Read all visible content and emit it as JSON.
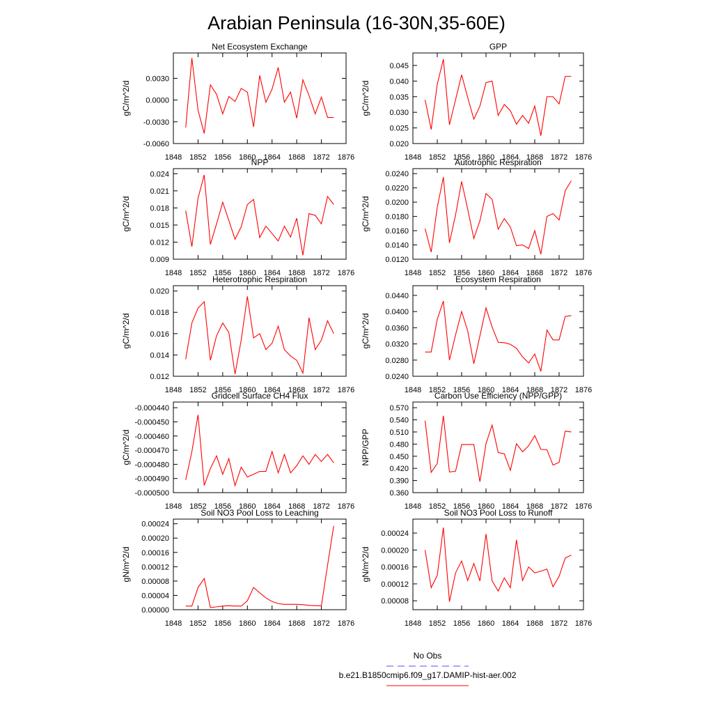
{
  "title": "Arabian Peninsula (16-30N,35-60E)",
  "legend": [
    {
      "name": "No Obs",
      "color": "#4d4dff",
      "dash": true
    },
    {
      "name": "b.e21.B1850cmip6.f09_g17.DAMIP-hist-aer.002",
      "color": "#ff0000",
      "dash": false
    }
  ],
  "chart_data": [
    {
      "type": "line",
      "title": "Net Ecosystem Exchange",
      "ylabel": "gC/m^2/d",
      "color": "#ff0000",
      "x": [
        1850,
        1851,
        1852,
        1853,
        1854,
        1855,
        1856,
        1857,
        1858,
        1859,
        1860,
        1861,
        1862,
        1863,
        1864,
        1865,
        1866,
        1867,
        1868,
        1869,
        1870,
        1871,
        1872,
        1873,
        1874
      ],
      "values": [
        -0.0038,
        0.0058,
        -0.0014,
        -0.0046,
        0.0021,
        0.0008,
        -0.0019,
        0.0005,
        -0.0002,
        0.0016,
        0.0011,
        -0.0037,
        0.0034,
        -0.0003,
        0.0015,
        0.0045,
        -0.0003,
        0.0011,
        -0.0025,
        0.0028,
        0.0006,
        -0.0019,
        0.0004,
        -0.0024,
        -0.0024
      ],
      "xlim": [
        1848,
        1876
      ],
      "xticks": [
        1848,
        1852,
        1856,
        1860,
        1864,
        1868,
        1872,
        1876
      ],
      "ylim": [
        -0.006,
        0.0065
      ],
      "yticks": [
        {
          "value": -0.006,
          "label": "-0.0060"
        },
        {
          "value": -0.003,
          "label": "-0.0030"
        },
        {
          "value": 0,
          "label": "0.0000"
        },
        {
          "value": 0.003,
          "label": "0.0030"
        }
      ]
    },
    {
      "type": "line",
      "title": "GPP",
      "ylabel": "gC/m^2/d",
      "color": "#ff0000",
      "x": [
        1850,
        1851,
        1852,
        1853,
        1854,
        1855,
        1856,
        1857,
        1858,
        1859,
        1860,
        1861,
        1862,
        1863,
        1864,
        1865,
        1866,
        1867,
        1868,
        1869,
        1870,
        1871,
        1872,
        1873,
        1874
      ],
      "values": [
        0.034,
        0.0245,
        0.039,
        0.047,
        0.026,
        0.034,
        0.042,
        0.0347,
        0.0278,
        0.032,
        0.0395,
        0.04,
        0.029,
        0.0325,
        0.0305,
        0.0262,
        0.029,
        0.0265,
        0.032,
        0.0225,
        0.035,
        0.035,
        0.0327,
        0.0415,
        0.0415
      ],
      "xlim": [
        1848,
        1876
      ],
      "xticks": [
        1848,
        1852,
        1856,
        1860,
        1864,
        1868,
        1872,
        1876
      ],
      "ylim": [
        0.02,
        0.049
      ],
      "yticks": [
        {
          "value": 0.02,
          "label": "0.020"
        },
        0.025,
        {
          "value": 0.03,
          "label": "0.030"
        },
        0.035,
        {
          "value": 0.04,
          "label": "0.040"
        },
        0.045
      ]
    },
    {
      "type": "line",
      "title": "NPP",
      "ylabel": "gC/m^2/d",
      "color": "#ff0000",
      "x": [
        1850,
        1851,
        1852,
        1853,
        1854,
        1855,
        1856,
        1857,
        1858,
        1859,
        1860,
        1861,
        1862,
        1863,
        1864,
        1865,
        1866,
        1867,
        1868,
        1869,
        1870,
        1871,
        1872,
        1873,
        1874
      ],
      "values": [
        0.0175,
        0.0112,
        0.0197,
        0.0238,
        0.0116,
        0.0152,
        0.019,
        0.0158,
        0.0125,
        0.0147,
        0.0186,
        0.0195,
        0.0128,
        0.0148,
        0.0135,
        0.0122,
        0.0148,
        0.0129,
        0.0162,
        0.0097,
        0.017,
        0.0167,
        0.0152,
        0.02,
        0.0186
      ],
      "xlim": [
        1848,
        1876
      ],
      "xticks": [
        1848,
        1852,
        1856,
        1860,
        1864,
        1868,
        1872,
        1876
      ],
      "ylim": [
        0.009,
        0.0249
      ],
      "yticks": [
        0.009,
        0.012,
        0.015,
        0.018,
        0.021,
        0.024
      ]
    },
    {
      "type": "line",
      "title": "Autotrophic Respiration",
      "ylabel": "gC/m^2/d",
      "color": "#ff0000",
      "x": [
        1850,
        1851,
        1852,
        1853,
        1854,
        1855,
        1856,
        1857,
        1858,
        1859,
        1860,
        1861,
        1862,
        1863,
        1864,
        1865,
        1866,
        1867,
        1868,
        1869,
        1870,
        1871,
        1872,
        1873,
        1874
      ],
      "values": [
        0.0163,
        0.013,
        0.0193,
        0.0235,
        0.0143,
        0.0182,
        0.0229,
        0.019,
        0.0149,
        0.0174,
        0.0212,
        0.0204,
        0.0162,
        0.0177,
        0.0165,
        0.0139,
        0.014,
        0.0135,
        0.016,
        0.0127,
        0.018,
        0.0184,
        0.0175,
        0.0216,
        0.023
      ],
      "xlim": [
        1848,
        1876
      ],
      "xticks": [
        1848,
        1852,
        1856,
        1860,
        1864,
        1868,
        1872,
        1876
      ],
      "ylim": [
        0.012,
        0.0247
      ],
      "yticks": [
        {
          "value": 0.012,
          "label": "0.0120"
        },
        {
          "value": 0.014,
          "label": "0.0140"
        },
        {
          "value": 0.016,
          "label": "0.0160"
        },
        {
          "value": 0.018,
          "label": "0.0180"
        },
        {
          "value": 0.02,
          "label": "0.0200"
        },
        {
          "value": 0.022,
          "label": "0.0220"
        },
        {
          "value": 0.024,
          "label": "0.0240"
        }
      ]
    },
    {
      "type": "line",
      "title": "Heterotrophic Respiration",
      "ylabel": "gC/m^2/d",
      "color": "#ff0000",
      "x": [
        1850,
        1851,
        1852,
        1853,
        1854,
        1855,
        1856,
        1857,
        1858,
        1859,
        1860,
        1861,
        1862,
        1863,
        1864,
        1865,
        1866,
        1867,
        1868,
        1869,
        1870,
        1871,
        1872,
        1873,
        1874
      ],
      "values": [
        0.0136,
        0.017,
        0.0184,
        0.019,
        0.0135,
        0.0158,
        0.017,
        0.0161,
        0.0122,
        0.0154,
        0.0195,
        0.0156,
        0.016,
        0.0145,
        0.0151,
        0.0167,
        0.0145,
        0.0139,
        0.0135,
        0.0123,
        0.0175,
        0.0145,
        0.0154,
        0.0172,
        0.016
      ],
      "xlim": [
        1848,
        1876
      ],
      "xticks": [
        1848,
        1852,
        1856,
        1860,
        1864,
        1868,
        1872,
        1876
      ],
      "ylim": [
        0.012,
        0.0205
      ],
      "yticks": [
        0.012,
        0.014,
        0.016,
        0.018,
        {
          "value": 0.02,
          "label": "0.020"
        }
      ]
    },
    {
      "type": "line",
      "title": "Ecosystem Respiration",
      "ylabel": "gC/m^2/d",
      "color": "#ff0000",
      "x": [
        1850,
        1851,
        1852,
        1853,
        1854,
        1855,
        1856,
        1857,
        1858,
        1859,
        1860,
        1861,
        1862,
        1863,
        1864,
        1865,
        1866,
        1867,
        1868,
        1869,
        1870,
        1871,
        1872,
        1873,
        1874
      ],
      "values": [
        0.03,
        0.03,
        0.0381,
        0.0426,
        0.028,
        0.0342,
        0.04,
        0.0352,
        0.0271,
        0.034,
        0.0409,
        0.0362,
        0.0324,
        0.0323,
        0.0319,
        0.0309,
        0.0288,
        0.0273,
        0.0295,
        0.0252,
        0.0354,
        0.033,
        0.033,
        0.0388,
        0.039
      ],
      "xlim": [
        1848,
        1876
      ],
      "xticks": [
        1848,
        1852,
        1856,
        1860,
        1864,
        1868,
        1872,
        1876
      ],
      "ylim": [
        0.024,
        0.0464
      ],
      "yticks": [
        {
          "value": 0.024,
          "label": "0.0240"
        },
        {
          "value": 0.028,
          "label": "0.0280"
        },
        {
          "value": 0.032,
          "label": "0.0320"
        },
        {
          "value": 0.036,
          "label": "0.0360"
        },
        {
          "value": 0.04,
          "label": "0.0400"
        },
        {
          "value": 0.044,
          "label": "0.0440"
        }
      ]
    },
    {
      "type": "line",
      "title": "Gridcell Surface CH4 Flux",
      "ylabel": "gC/m^2/d",
      "color": "#ff0000",
      "x": [
        1850,
        1851,
        1852,
        1853,
        1854,
        1855,
        1856,
        1857,
        1858,
        1859,
        1860,
        1861,
        1862,
        1863,
        1864,
        1865,
        1866,
        1867,
        1868,
        1869,
        1870,
        1871,
        1872,
        1873,
        1874
      ],
      "values": [
        -0.000491,
        -0.000471,
        -0.000445,
        -0.000495,
        -0.000483,
        -0.000474,
        -0.000487,
        -0.000476,
        -0.000495,
        -0.000482,
        -0.000489,
        -0.000487,
        -0.000485,
        -0.000485,
        -0.000471,
        -0.000486,
        -0.000473,
        -0.000486,
        -0.000481,
        -0.000474,
        -0.00048,
        -0.000473,
        -0.000478,
        -0.000473,
        -0.000479
      ],
      "xlim": [
        1848,
        1876
      ],
      "xticks": [
        1848,
        1852,
        1856,
        1860,
        1864,
        1868,
        1872,
        1876
      ],
      "ylim": [
        -0.0005,
        -0.000436
      ],
      "yticks": [
        {
          "value": -0.0005,
          "label": "-0.000500"
        },
        {
          "value": -0.00049,
          "label": "-0.000490"
        },
        {
          "value": -0.00048,
          "label": "-0.000480"
        },
        {
          "value": -0.00047,
          "label": "-0.000470"
        },
        {
          "value": -0.00046,
          "label": "-0.000460"
        },
        {
          "value": -0.00045,
          "label": "-0.000450"
        },
        {
          "value": -0.00044,
          "label": "-0.000440"
        }
      ]
    },
    {
      "type": "line",
      "title": "Carbon Use Efficiency (NPP/GPP)",
      "ylabel": "NPP/GPP",
      "color": "#ff0000",
      "x": [
        1850,
        1851,
        1852,
        1853,
        1854,
        1855,
        1856,
        1857,
        1858,
        1859,
        1860,
        1861,
        1862,
        1863,
        1864,
        1865,
        1866,
        1867,
        1868,
        1869,
        1870,
        1871,
        1872,
        1873,
        1874
      ],
      "values": [
        0.538,
        0.41,
        0.432,
        0.55,
        0.411,
        0.413,
        0.479,
        0.479,
        0.479,
        0.387,
        0.481,
        0.527,
        0.459,
        0.456,
        0.415,
        0.481,
        0.461,
        0.476,
        0.501,
        0.467,
        0.466,
        0.428,
        0.435,
        0.512,
        0.51
      ],
      "xlim": [
        1848,
        1876
      ],
      "xticks": [
        1848,
        1852,
        1856,
        1860,
        1864,
        1868,
        1872,
        1876
      ],
      "ylim": [
        0.36,
        0.584
      ],
      "yticks": [
        {
          "value": 0.36,
          "label": "0.360"
        },
        {
          "value": 0.39,
          "label": "0.390"
        },
        {
          "value": 0.42,
          "label": "0.420"
        },
        {
          "value": 0.45,
          "label": "0.450"
        },
        {
          "value": 0.48,
          "label": "0.480"
        },
        {
          "value": 0.51,
          "label": "0.510"
        },
        {
          "value": 0.54,
          "label": "0.540"
        },
        {
          "value": 0.57,
          "label": "0.570"
        }
      ]
    },
    {
      "type": "line",
      "title": "Soil NO3 Pool Loss to Leaching",
      "ylabel": "gN/m^2/d",
      "color": "#ff0000",
      "x": [
        1850,
        1851,
        1852,
        1853,
        1854,
        1855,
        1856,
        1857,
        1858,
        1859,
        1860,
        1861,
        1862,
        1863,
        1864,
        1865,
        1866,
        1867,
        1868,
        1869,
        1870,
        1871,
        1872,
        1873,
        1874
      ],
      "values": [
        1e-05,
        1e-05,
        6.2e-05,
        8.7e-05,
        6e-06,
        8e-06,
        1e-05,
        1.1e-05,
        1e-05,
        1e-05,
        2.5e-05,
        6.2e-05,
        4.7e-05,
        3.3e-05,
        2.3e-05,
        1.7e-05,
        1.5e-05,
        1.5e-05,
        1.5e-05,
        1.4e-05,
        1.2e-05,
        1.1e-05,
        1.1e-05,
        0.000124,
        0.000234
      ],
      "xlim": [
        1848,
        1876
      ],
      "xticks": [
        1848,
        1852,
        1856,
        1860,
        1864,
        1868,
        1872,
        1876
      ],
      "ylim": [
        0,
        0.000253
      ],
      "yticks": [
        {
          "value": 0,
          "label": "0.00000"
        },
        4e-05,
        8e-05,
        0.00012,
        0.00016,
        {
          "value": 0.0002,
          "label": "0.00020"
        },
        0.00024
      ]
    },
    {
      "type": "line",
      "title": "Soil NO3 Pool Loss to Runoff",
      "ylabel": "gN/m^2/d",
      "color": "#ff0000",
      "x": [
        1850,
        1851,
        1852,
        1853,
        1854,
        1855,
        1856,
        1857,
        1858,
        1859,
        1860,
        1861,
        1862,
        1863,
        1864,
        1865,
        1866,
        1867,
        1868,
        1869,
        1870,
        1871,
        1872,
        1873,
        1874
      ],
      "values": [
        0.0002,
        0.000111,
        0.00014,
        0.000253,
        7.8e-05,
        0.000146,
        0.000174,
        0.000128,
        0.000168,
        0.000127,
        0.000238,
        0.000127,
        0.000103,
        0.000134,
        0.000111,
        0.000224,
        0.000128,
        0.00016,
        0.000146,
        0.00015,
        0.000155,
        0.000113,
        0.000138,
        0.000181,
        0.000188
      ],
      "xlim": [
        1848,
        1876
      ],
      "xticks": [
        1848,
        1852,
        1856,
        1860,
        1864,
        1868,
        1872,
        1876
      ],
      "ylim": [
        5.9e-05,
        0.000273
      ],
      "yticks": [
        8e-05,
        0.00012,
        0.00016,
        {
          "value": 0.0002,
          "label": "0.00020"
        },
        0.00024
      ]
    }
  ]
}
